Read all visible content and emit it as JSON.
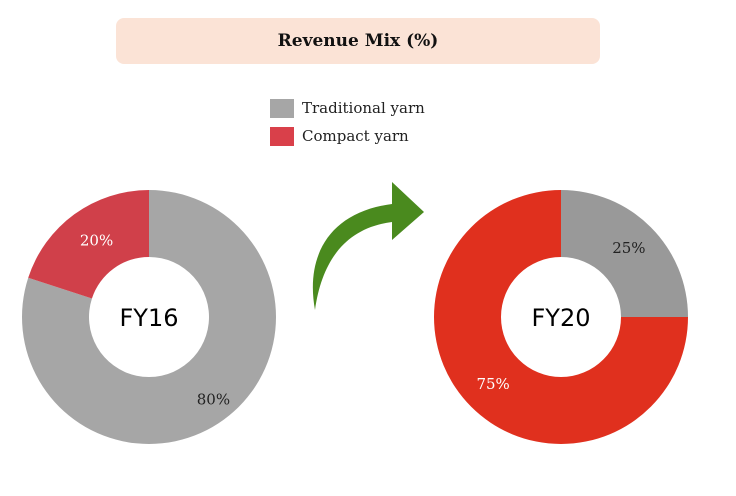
{
  "title": "Revenue Mix (%)",
  "legend": [
    {
      "label": "Traditional yarn",
      "color": "#a6a6a6"
    },
    {
      "label": "Compact yarn",
      "color": "#d9404a"
    }
  ],
  "chart_data": [
    {
      "type": "pie",
      "variant": "donut",
      "center_label": "FY16",
      "slices": [
        {
          "name": "Traditional yarn",
          "value": 80,
          "label": "80%",
          "color": "#a6a6a6"
        },
        {
          "name": "Compact yarn",
          "value": 20,
          "label": "20%",
          "color": "#d0404a"
        }
      ]
    },
    {
      "type": "pie",
      "variant": "donut",
      "center_label": "FY20",
      "slices": [
        {
          "name": "Traditional yarn",
          "value": 25,
          "label": "25%",
          "color": "#999999"
        },
        {
          "name": "Compact yarn",
          "value": 75,
          "label": "75%",
          "color": "#e0301e"
        }
      ]
    }
  ],
  "arrow": {
    "icon": "curved-arrow-icon",
    "color": "#4a8a1e"
  }
}
